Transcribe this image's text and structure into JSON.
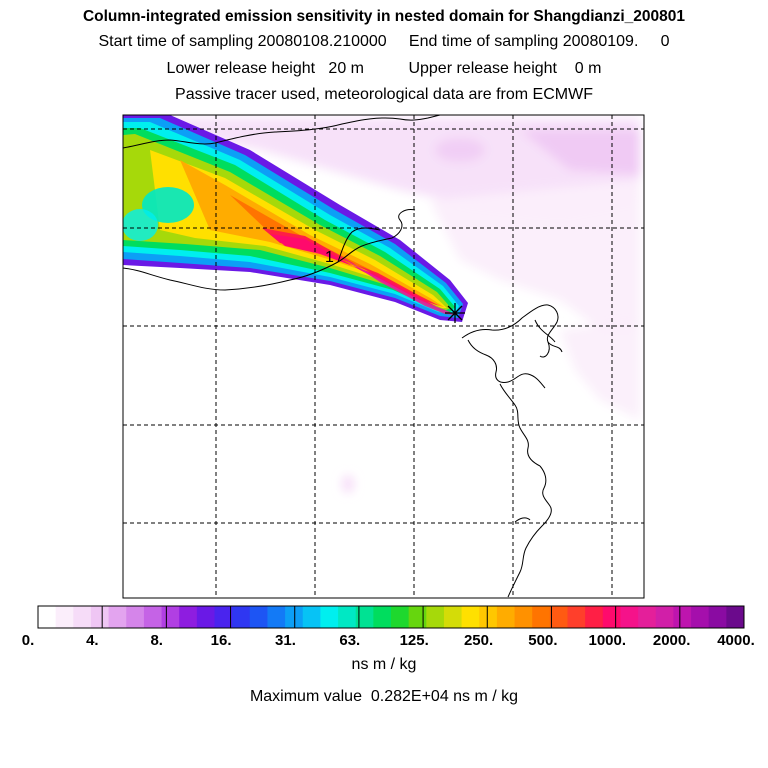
{
  "header": {
    "title": "Column-integrated emission sensitivity in nested domain for Shangdianzi_200801",
    "sampling": "Start time of sampling 20080108.210000     End time of sampling 20080109.     0",
    "release": "Lower release height   20 m          Upper release height    0 m",
    "tracer": "Passive tracer used, meteorological data are from ECMWF"
  },
  "chart_data": {
    "type": "heatmap",
    "title": "Column-integrated emission sensitivity in nested domain for Shangdianzi_200801",
    "colorbar": {
      "ticks": [
        "0.",
        "4.",
        "8.",
        "16.",
        "31.",
        "63.",
        "125.",
        "250.",
        "500.",
        "1000.",
        "2000.",
        "4000."
      ],
      "tick_values": [
        0,
        4,
        8,
        16,
        31,
        63,
        125,
        250,
        500,
        1000,
        2000,
        4000
      ],
      "colors": [
        "#ffffff",
        "#fbeefb",
        "#f6dcf8",
        "#efc6f4",
        "#e3a4ef",
        "#d585ea",
        "#c563e6",
        "#b13fe3",
        "#8e1de0",
        "#6a19e6",
        "#4a24ee",
        "#2f37f2",
        "#1d55f4",
        "#137af6",
        "#0c9ff6",
        "#07c3f5",
        "#00efef",
        "#00e8c4",
        "#00e293",
        "#00dd5e",
        "#1ed82e",
        "#66d60e",
        "#a6d90a",
        "#d4dc08",
        "#ffe000",
        "#ffc700",
        "#ffac00",
        "#ff9100",
        "#ff7400",
        "#ff5a12",
        "#ff3f2b",
        "#ff1f45",
        "#ff0a6c",
        "#f5128a",
        "#e41f9a",
        "#d11fa8",
        "#be15ae",
        "#a50fac",
        "#8a0ba2",
        "#6b0a8c"
      ],
      "unit": "ns m / kg"
    },
    "receptor_marker": "1",
    "max_value": "Maximum value  0.282E+04 ns m / kg",
    "grid": true
  }
}
